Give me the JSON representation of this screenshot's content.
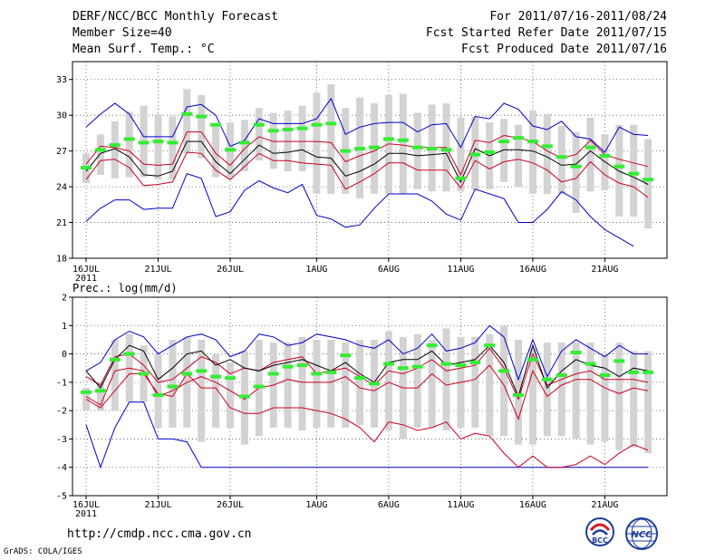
{
  "header": {
    "title": "DERF/NCC/BCC Monthly Forecast",
    "member_size": "Member Size=40",
    "variable_top": "Mean Surf. Temp.: °C",
    "period": "For 2011/07/16-2011/08/24",
    "started": "Fcst Started Refer Date 2011/07/15",
    "produced": "Fcst Produced Date 2011/07/16"
  },
  "footer": {
    "url": "http://cmdp.ncc.cma.gov.cn",
    "credit": "GrADS: COLA/IGES"
  },
  "logos": {
    "bcc": "BCC",
    "ncc": "NCC"
  },
  "colors": {
    "envelope": "#0000cc",
    "quartile": "#cc0022",
    "median": "#000000",
    "mean": "#33ee33",
    "box": "#d3d3d3",
    "grid": "#555555"
  },
  "chart_data": [
    {
      "type": "box",
      "title": "Mean Surf. Temp.: °C",
      "xlabel": "",
      "ylabel": "",
      "x_days": 40,
      "x_ticks": [
        {
          "day": 0,
          "label": "16JUL",
          "sublabel": "2011"
        },
        {
          "day": 5,
          "label": "21JUL"
        },
        {
          "day": 10,
          "label": "26JUL"
        },
        {
          "day": 16,
          "label": "1AUG"
        },
        {
          "day": 21,
          "label": "6AUG"
        },
        {
          "day": 26,
          "label": "11AUG"
        },
        {
          "day": 31,
          "label": "16AUG"
        },
        {
          "day": 36,
          "label": "21AUG"
        }
      ],
      "y_ticks": [
        18,
        21,
        24,
        27,
        30,
        33
      ],
      "ylim": [
        18,
        34.5
      ],
      "box_low": [
        24.3,
        25.0,
        24.7,
        24.8,
        24.8,
        24.6,
        24.6,
        26.8,
        26.4,
        24.8,
        24.8,
        25.3,
        26.2,
        25.5,
        25.3,
        25.3,
        23.4,
        23.4,
        23.4,
        23.0,
        23.4,
        23.4,
        23.4,
        23.8,
        23.6,
        23.6,
        23.6,
        23.7,
        23.8,
        24.4,
        24.0,
        23.4,
        23.4,
        23.4,
        21.8,
        23.6,
        23.7,
        21.5,
        21.5,
        20.5
      ],
      "box_high": [
        26.8,
        28.4,
        29.5,
        30.3,
        30.8,
        30.1,
        29.9,
        32.2,
        31.7,
        29.2,
        29.4,
        29.6,
        30.6,
        30.2,
        30.4,
        30.8,
        31.9,
        32.6,
        30.6,
        31.5,
        31.0,
        31.7,
        31.8,
        30.2,
        30.9,
        31.0,
        29.8,
        29.9,
        29.4,
        29.7,
        29.2,
        30.4,
        30.1,
        29.1,
        28.6,
        29.8,
        28.4,
        29.2,
        29.2,
        28.0
      ],
      "mean": [
        25.6,
        27.1,
        27.5,
        28.0,
        27.7,
        27.8,
        27.7,
        30.1,
        29.9,
        29.2,
        27.1,
        27.7,
        29.2,
        28.7,
        28.8,
        28.9,
        29.2,
        29.3,
        27.0,
        27.2,
        27.3,
        28.0,
        27.9,
        27.3,
        27.2,
        27.1,
        24.7,
        26.7,
        26.9,
        27.8,
        28.1,
        27.8,
        27.4,
        26.5,
        25.7,
        27.3,
        26.6,
        25.7,
        25.1,
        24.6
      ],
      "median": [
        25.3,
        26.8,
        27.2,
        26.5,
        25.0,
        24.9,
        25.3,
        27.8,
        27.8,
        26.1,
        25.1,
        26.3,
        27.5,
        26.8,
        26.9,
        27.1,
        26.5,
        26.4,
        24.9,
        25.3,
        25.9,
        26.8,
        26.8,
        26.6,
        26.7,
        26.8,
        24.4,
        27.2,
        26.6,
        27.1,
        27.1,
        27.0,
        26.5,
        25.8,
        25.9,
        27.0,
        26.1,
        25.3,
        24.8,
        24.2
      ],
      "q_high": [
        25.9,
        27.4,
        27.3,
        27.0,
        25.9,
        25.8,
        25.9,
        28.6,
        28.6,
        26.8,
        25.8,
        27.2,
        28.2,
        27.8,
        27.8,
        27.8,
        27.8,
        27.7,
        26.1,
        26.6,
        27.0,
        27.6,
        27.5,
        27.3,
        27.3,
        27.3,
        25.0,
        27.9,
        27.7,
        28.3,
        28.1,
        27.8,
        27.0,
        26.4,
        26.7,
        27.9,
        26.7,
        26.3,
        26.0,
        25.7
      ],
      "q_low": [
        24.6,
        26.2,
        26.3,
        25.6,
        24.1,
        24.2,
        24.4,
        26.9,
        26.8,
        25.4,
        24.6,
        25.7,
        26.8,
        26.2,
        26.2,
        26.0,
        25.9,
        25.8,
        23.8,
        24.4,
        25.1,
        26.0,
        26.0,
        25.4,
        25.4,
        25.4,
        23.9,
        26.2,
        25.5,
        26.1,
        26.3,
        26.0,
        25.4,
        24.4,
        24.7,
        26.1,
        25.0,
        24.3,
        24.0,
        23.1
      ],
      "env_high": [
        29.0,
        30.1,
        31.0,
        30.1,
        28.2,
        28.2,
        28.2,
        30.7,
        30.9,
        30.0,
        27.4,
        27.9,
        29.7,
        29.3,
        29.3,
        29.3,
        29.7,
        31.4,
        28.4,
        29.0,
        29.3,
        29.4,
        29.4,
        28.6,
        29.2,
        29.3,
        27.3,
        29.9,
        29.7,
        31.0,
        30.5,
        29.1,
        28.8,
        29.5,
        28.2,
        28.0,
        26.9,
        29.0,
        28.4,
        28.3
      ],
      "env_low": [
        21.1,
        22.2,
        22.9,
        22.9,
        22.1,
        22.2,
        22.2,
        25.1,
        24.7,
        21.5,
        21.9,
        23.7,
        24.5,
        23.9,
        23.5,
        24.2,
        21.6,
        21.3,
        20.6,
        20.8,
        22.2,
        23.4,
        23.4,
        23.4,
        22.8,
        21.7,
        21.2,
        23.8,
        23.4,
        23.0,
        21.0,
        21.0,
        22.1,
        23.6,
        22.9,
        21.5,
        20.4,
        19.7,
        19.0,
        null
      ]
    },
    {
      "type": "box",
      "title": "Prec.: log(mm/d)",
      "xlabel": "",
      "ylabel": "",
      "x_days": 40,
      "x_ticks": [
        {
          "day": 0,
          "label": "16JUL",
          "sublabel": "2011"
        },
        {
          "day": 5,
          "label": "21JUL"
        },
        {
          "day": 10,
          "label": "26JUL"
        },
        {
          "day": 16,
          "label": "1AUG"
        },
        {
          "day": 21,
          "label": "6AUG"
        },
        {
          "day": 26,
          "label": "11AUG"
        },
        {
          "day": 31,
          "label": "16AUG"
        },
        {
          "day": 36,
          "label": "21AUG"
        }
      ],
      "y_ticks": [
        -5,
        -4,
        -3,
        -2,
        -1,
        0,
        1,
        2
      ],
      "ylim": [
        -5,
        2
      ],
      "box_low": [
        -2.0,
        -2.0,
        -2.0,
        -1.7,
        -1.7,
        -2.6,
        -2.6,
        -2.6,
        -3.1,
        -2.6,
        -2.6,
        -3.2,
        -2.9,
        -2.6,
        -2.6,
        -2.7,
        -2.6,
        -2.6,
        -2.6,
        -2.5,
        -2.6,
        -2.7,
        -3.0,
        -2.6,
        -2.6,
        -2.7,
        -2.6,
        -2.6,
        -2.9,
        -2.9,
        -3.2,
        -3.2,
        -2.9,
        -2.9,
        -3.0,
        -3.2,
        -3.1,
        -3.4,
        -3.3,
        -3.5
      ],
      "box_high": [
        -1.2,
        -1.0,
        0.5,
        0.7,
        0.3,
        0.0,
        0.5,
        0.6,
        0.5,
        0.0,
        -0.3,
        0.1,
        0.5,
        0.4,
        0.4,
        0.6,
        0.5,
        0.5,
        0.4,
        0.5,
        0.5,
        0.8,
        0.6,
        0.7,
        0.5,
        0.9,
        0.6,
        0.6,
        0.7,
        1.0,
        0.5,
        0.2,
        0.4,
        0.4,
        0.4,
        0.4,
        0.0,
        0.4,
        0.1,
        0.1
      ],
      "mean": [
        -1.35,
        -1.3,
        -0.2,
        0.0,
        -0.7,
        -1.45,
        -1.15,
        -0.7,
        -0.6,
        -0.8,
        -0.85,
        -1.5,
        -1.15,
        -0.7,
        -0.45,
        -0.4,
        -0.7,
        -0.65,
        -0.05,
        -0.85,
        -1.05,
        -0.35,
        -0.5,
        -0.45,
        0.3,
        -0.35,
        -0.4,
        -0.3,
        0.3,
        -0.6,
        -1.45,
        -0.2,
        -0.9,
        -0.75,
        0.05,
        -0.35,
        -0.75,
        -0.25,
        -0.65,
        -0.65
      ],
      "median": [
        -0.6,
        -1.2,
        -0.2,
        0.3,
        0.1,
        -0.9,
        -0.5,
        0.0,
        0.1,
        -0.4,
        -0.2,
        -0.5,
        -0.6,
        -0.4,
        -0.3,
        -0.2,
        -0.4,
        -0.6,
        -0.3,
        -0.7,
        -1.0,
        -0.3,
        -0.2,
        -0.2,
        0.1,
        -0.4,
        -0.3,
        -0.2,
        0.3,
        -0.3,
        -1.5,
        0.3,
        -1.2,
        -0.6,
        -0.2,
        -0.4,
        -0.5,
        -0.8,
        -0.5,
        -0.6
      ],
      "q_high": [
        -0.8,
        -1.1,
        -0.1,
        0.0,
        -0.4,
        -1.0,
        -0.9,
        -0.5,
        -0.1,
        -0.3,
        -0.7,
        -0.5,
        -0.6,
        -0.3,
        -0.2,
        -0.1,
        -0.7,
        -0.6,
        -0.5,
        -0.8,
        -1.1,
        -0.6,
        -0.7,
        -0.5,
        -0.2,
        -0.6,
        -0.5,
        -0.4,
        0.2,
        -0.5,
        -1.6,
        0.0,
        -1.1,
        -0.9,
        -0.7,
        -0.6,
        -0.9,
        -0.9,
        -0.9,
        -1.0
      ],
      "q_low": [
        -1.5,
        -1.8,
        -0.6,
        -0.5,
        -0.6,
        -1.5,
        -1.3,
        -1.0,
        -0.8,
        -1.0,
        -1.3,
        -1.6,
        -1.2,
        -1.1,
        -0.9,
        -1.0,
        -1.0,
        -1.0,
        -0.8,
        -1.2,
        -1.3,
        -1.0,
        -1.2,
        -1.2,
        -0.7,
        -1.1,
        -1.0,
        -0.9,
        -0.4,
        -1.1,
        -2.3,
        -0.6,
        -1.5,
        -1.1,
        -0.9,
        -0.9,
        -1.2,
        -1.4,
        -1.2,
        -1.3
      ],
      "q_low2": [
        -1.6,
        -1.9,
        -1.3,
        -0.7,
        -0.7,
        -1.4,
        -1.5,
        -0.7,
        -1.2,
        -1.2,
        -1.9,
        -2.1,
        -2.1,
        -1.9,
        -1.9,
        -1.9,
        -2.0,
        -2.1,
        -2.3,
        -2.6,
        -3.1,
        -2.4,
        -2.5,
        -2.7,
        -2.6,
        -2.4,
        -3.0,
        -2.8,
        -2.9,
        -3.5,
        -4.0,
        -3.6,
        -4.0,
        -4.0,
        -3.9,
        -3.6,
        -3.9,
        -3.5,
        -3.2,
        -3.4
      ],
      "env_high": [
        -0.6,
        -0.3,
        0.5,
        0.8,
        0.6,
        0.0,
        0.3,
        0.6,
        0.7,
        0.5,
        -0.1,
        0.1,
        0.7,
        0.6,
        0.3,
        0.4,
        0.7,
        0.6,
        0.5,
        0.3,
        0.2,
        0.5,
        0.0,
        0.2,
        0.7,
        0.1,
        0.2,
        0.4,
        1.0,
        0.6,
        -0.9,
        0.5,
        -0.8,
        0.1,
        0.5,
        0.2,
        -0.1,
        0.3,
        0.0,
        0.0
      ],
      "env_low": [
        -2.5,
        -4.0,
        -2.6,
        -1.7,
        -1.7,
        -3.0,
        -3.0,
        -3.1,
        -4.0,
        -4.0,
        -4.0,
        -4.0,
        -4.0,
        -4.0,
        -4.0,
        -4.0,
        -4.0,
        -4.0,
        -4.0,
        -4.0,
        -4.0,
        -4.0,
        -4.0,
        -4.0,
        -4.0,
        -4.0,
        -4.0,
        -4.0,
        -4.0,
        -4.0,
        -4.0,
        -4.0,
        -4.0,
        -4.0,
        -4.0,
        -4.0,
        -4.0,
        -4.0,
        -4.0,
        -4.0
      ]
    }
  ]
}
